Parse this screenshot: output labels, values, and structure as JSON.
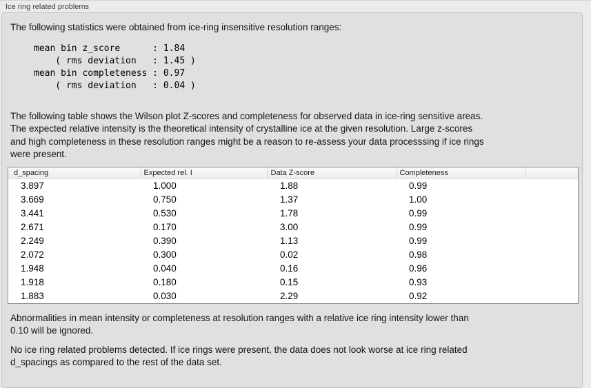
{
  "panel": {
    "title": "Ice ring related problems",
    "intro": "The following statistics were obtained from ice-ring insensitive resolution ranges:",
    "stats_block": "mean bin z_score      : 1.84\n    ( rms deviation   : 1.45 )\nmean bin completeness : 0.97\n    ( rms deviation   : 0.04 )",
    "description": "The following table shows the Wilson plot Z-scores and completeness for observed data in ice-ring sensitive areas.\nThe expected relative intensity is the theoretical intensity of crystalline ice at the given resolution. Large z-scores\nand high completeness in these resolution ranges might be a reason to re-assess your data processsing if ice rings\nwere present.",
    "threshold_note": "Abnormalities in mean intensity or completeness at resolution ranges with a relative ice ring intensity lower than\n0.10 will be ignored.",
    "conclusion": "No ice ring related problems detected. If ice rings were present, the data does not look worse at ice ring related\nd_spacings as compared to the rest of the data set."
  },
  "table": {
    "columns": [
      "d_spacing",
      "Expected rel. I",
      "Data Z-score",
      "Completeness",
      ""
    ],
    "rows": [
      [
        "3.897",
        "1.000",
        "1.88",
        "0.99"
      ],
      [
        "3.669",
        "0.750",
        "1.37",
        "1.00"
      ],
      [
        "3.441",
        "0.530",
        "1.78",
        "0.99"
      ],
      [
        "2.671",
        "0.170",
        "3.00",
        "0.99"
      ],
      [
        "2.249",
        "0.390",
        "1.13",
        "0.99"
      ],
      [
        "2.072",
        "0.300",
        "0.02",
        "0.98"
      ],
      [
        "1.948",
        "0.040",
        "0.16",
        "0.96"
      ],
      [
        "1.918",
        "0.180",
        "0.15",
        "0.93"
      ],
      [
        "1.883",
        "0.030",
        "2.29",
        "0.92"
      ]
    ]
  },
  "colors": {
    "page_background": "#ebebeb",
    "panel_background": "#e0e0e0",
    "panel_border": "#c3c3c3",
    "table_border": "#8b8b8b",
    "table_header_background": "#f3f3f3",
    "table_row_background": "#ffffff",
    "text": "#141414"
  }
}
